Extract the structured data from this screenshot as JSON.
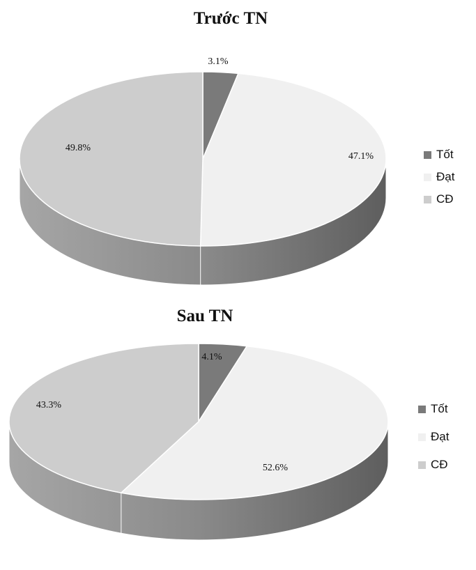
{
  "chart_data": [
    {
      "type": "pie",
      "title": "Trước TN",
      "categories": [
        "Tốt",
        "Đạt",
        "CĐ"
      ],
      "values": [
        3.1,
        47.1,
        49.8
      ],
      "value_labels": [
        "3.1%",
        "47.1%",
        "49.8%"
      ],
      "colors": [
        "#7a7a7a",
        "#f0f0f0",
        "#cdcdcd"
      ],
      "legend": "right",
      "style": "3d"
    },
    {
      "type": "pie",
      "title": "Sau TN",
      "categories": [
        "Tốt",
        "Đạt",
        "CĐ"
      ],
      "values": [
        4.1,
        52.6,
        43.3
      ],
      "value_labels": [
        "4.1%",
        "52.6%",
        "43.3%"
      ],
      "colors": [
        "#7a7a7a",
        "#f0f0f0",
        "#cdcdcd"
      ],
      "legend": "right",
      "style": "3d"
    }
  ]
}
